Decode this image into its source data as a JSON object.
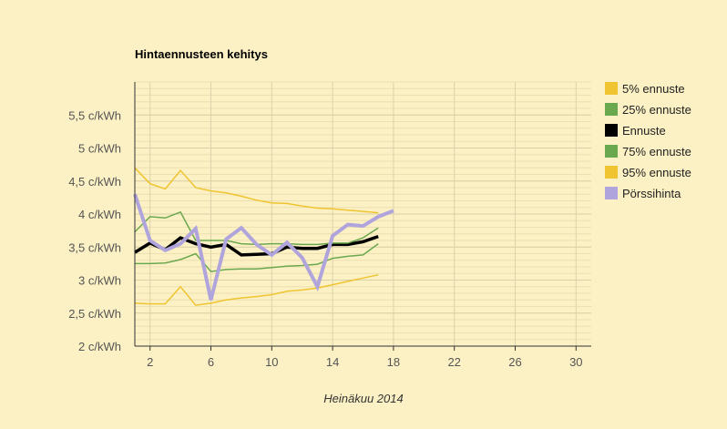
{
  "chart_data": {
    "type": "line",
    "title": "Hintaennusteen kehitys",
    "xlabel": "Heinäkuu 2014",
    "ylabel": "",
    "xlim": [
      1,
      31
    ],
    "ylim": [
      2,
      6
    ],
    "x_ticks": [
      2,
      6,
      10,
      14,
      18,
      22,
      26,
      30
    ],
    "x_tick_labels": [
      "2",
      "6",
      "10",
      "14",
      "18",
      "22",
      "26",
      "30"
    ],
    "y_ticks": [
      2,
      2.5,
      3,
      3.5,
      4,
      4.5,
      5,
      5.5
    ],
    "y_tick_labels": [
      "2 c/kWh",
      "2,5 c/kWh",
      "3 c/kWh",
      "3,5 c/kWh",
      "4 c/kWh",
      "4,5 c/kWh",
      "5 c/kWh",
      "5,5 c/kWh"
    ],
    "grid": true,
    "legend_position": "right",
    "series": [
      {
        "name": "5% ennuste",
        "color": "#f0c431",
        "width": 1.5,
        "x": [
          1,
          2,
          3,
          4,
          5,
          6,
          7,
          8,
          9,
          10,
          11,
          12,
          13,
          14,
          15,
          16,
          17
        ],
        "values": [
          2.65,
          2.64,
          2.64,
          2.9,
          2.62,
          2.65,
          2.7,
          2.73,
          2.75,
          2.78,
          2.83,
          2.85,
          2.88,
          2.93,
          2.98,
          3.03,
          3.08
        ]
      },
      {
        "name": "25% ennuste",
        "color": "#6aa84f",
        "width": 1.5,
        "x": [
          1,
          2,
          3,
          4,
          5,
          6,
          7,
          8,
          9,
          10,
          11,
          12,
          13,
          14,
          15,
          16,
          17
        ],
        "values": [
          3.25,
          3.25,
          3.26,
          3.31,
          3.4,
          3.13,
          3.16,
          3.17,
          3.17,
          3.19,
          3.21,
          3.22,
          3.24,
          3.33,
          3.36,
          3.38,
          3.55
        ]
      },
      {
        "name": "Ennuste",
        "color": "#000000",
        "width": 3.5,
        "x": [
          1,
          2,
          3,
          4,
          5,
          6,
          7,
          8,
          9,
          10,
          11,
          12,
          13,
          14,
          15,
          16,
          17
        ],
        "values": [
          3.42,
          3.56,
          3.46,
          3.64,
          3.55,
          3.5,
          3.54,
          3.38,
          3.39,
          3.4,
          3.5,
          3.48,
          3.48,
          3.54,
          3.54,
          3.58,
          3.66
        ]
      },
      {
        "name": "75% ennuste",
        "color": "#6aa84f",
        "width": 1.5,
        "x": [
          1,
          2,
          3,
          4,
          5,
          6,
          7,
          8,
          9,
          10,
          11,
          12,
          13,
          14,
          15,
          16,
          17
        ],
        "values": [
          3.73,
          3.96,
          3.94,
          4.03,
          3.6,
          3.6,
          3.6,
          3.55,
          3.54,
          3.55,
          3.55,
          3.54,
          3.54,
          3.56,
          3.56,
          3.64,
          3.79
        ]
      },
      {
        "name": "95% ennuste",
        "color": "#f0c431",
        "width": 1.5,
        "x": [
          1,
          2,
          3,
          4,
          5,
          6,
          7,
          8,
          9,
          10,
          11,
          12,
          13,
          14,
          15,
          16,
          17
        ],
        "values": [
          4.7,
          4.46,
          4.38,
          4.66,
          4.4,
          4.35,
          4.32,
          4.27,
          4.21,
          4.17,
          4.16,
          4.12,
          4.09,
          4.08,
          4.06,
          4.04,
          4.02
        ]
      },
      {
        "name": "Pörssihinta",
        "color": "#b0a4dd",
        "width": 4,
        "x": [
          1,
          2,
          3,
          4,
          5,
          6,
          7,
          8,
          9,
          10,
          11,
          12,
          13,
          14,
          15,
          16,
          17,
          18
        ],
        "values": [
          4.3,
          3.6,
          3.45,
          3.55,
          3.78,
          2.7,
          3.62,
          3.79,
          3.54,
          3.38,
          3.57,
          3.34,
          2.9,
          3.67,
          3.84,
          3.82,
          3.96,
          4.05
        ]
      }
    ]
  }
}
